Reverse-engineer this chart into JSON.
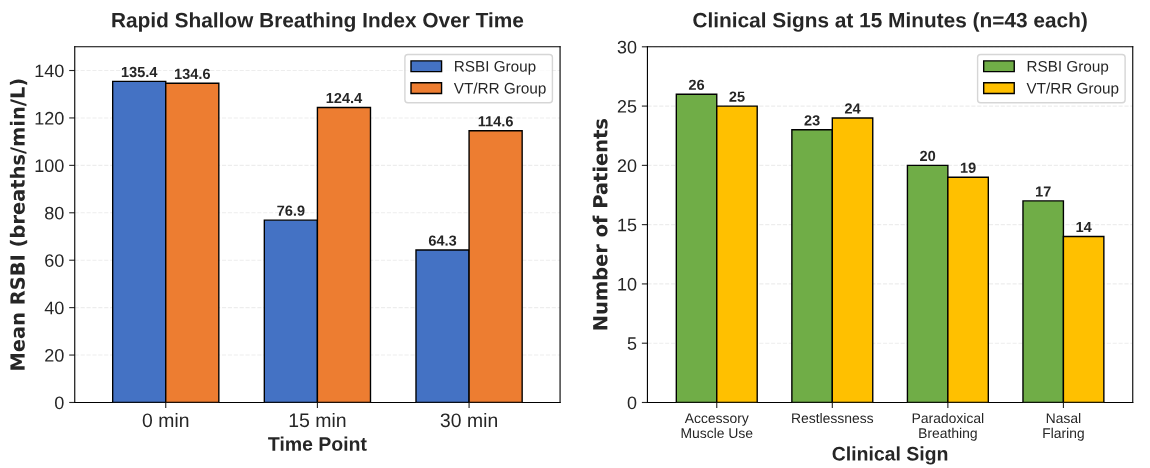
{
  "chart_data": [
    {
      "type": "bar",
      "title": "Rapid Shallow Breathing Index Over Time",
      "xlabel": "Time Point",
      "ylabel": "Mean RSBI (breaths/min/L)",
      "categories": [
        "0 min",
        "15 min",
        "30 min"
      ],
      "series": [
        {
          "name": "RSBI Group",
          "color": "#4472c4",
          "values": [
            135.4,
            76.9,
            64.3
          ]
        },
        {
          "name": "VT/RR Group",
          "color": "#ed7d31",
          "values": [
            134.6,
            124.4,
            114.6
          ]
        }
      ],
      "ylim": [
        0,
        150
      ],
      "yticks": [
        0,
        20,
        40,
        60,
        80,
        100,
        120,
        140
      ],
      "grid": "y",
      "legend": "top right",
      "data_labels": true
    },
    {
      "type": "bar",
      "title": "Clinical Signs at 15 Minutes (n=43 each)",
      "xlabel": "Clinical Sign",
      "ylabel": "Number of Patients",
      "categories": [
        "Accessory\nMuscle Use",
        "Restlessness",
        "Paradoxical\nBreathing",
        "Nasal\nFlaring"
      ],
      "series": [
        {
          "name": "RSBI Group",
          "color": "#70ad47",
          "values": [
            26,
            23,
            20,
            17
          ]
        },
        {
          "name": "VT/RR Group",
          "color": "#ffc000",
          "values": [
            25,
            24,
            19,
            14
          ]
        }
      ],
      "ylim": [
        0,
        30
      ],
      "yticks": [
        0,
        5,
        10,
        15,
        20,
        25,
        30
      ],
      "grid": "y",
      "legend": "top right",
      "data_labels": true
    }
  ]
}
